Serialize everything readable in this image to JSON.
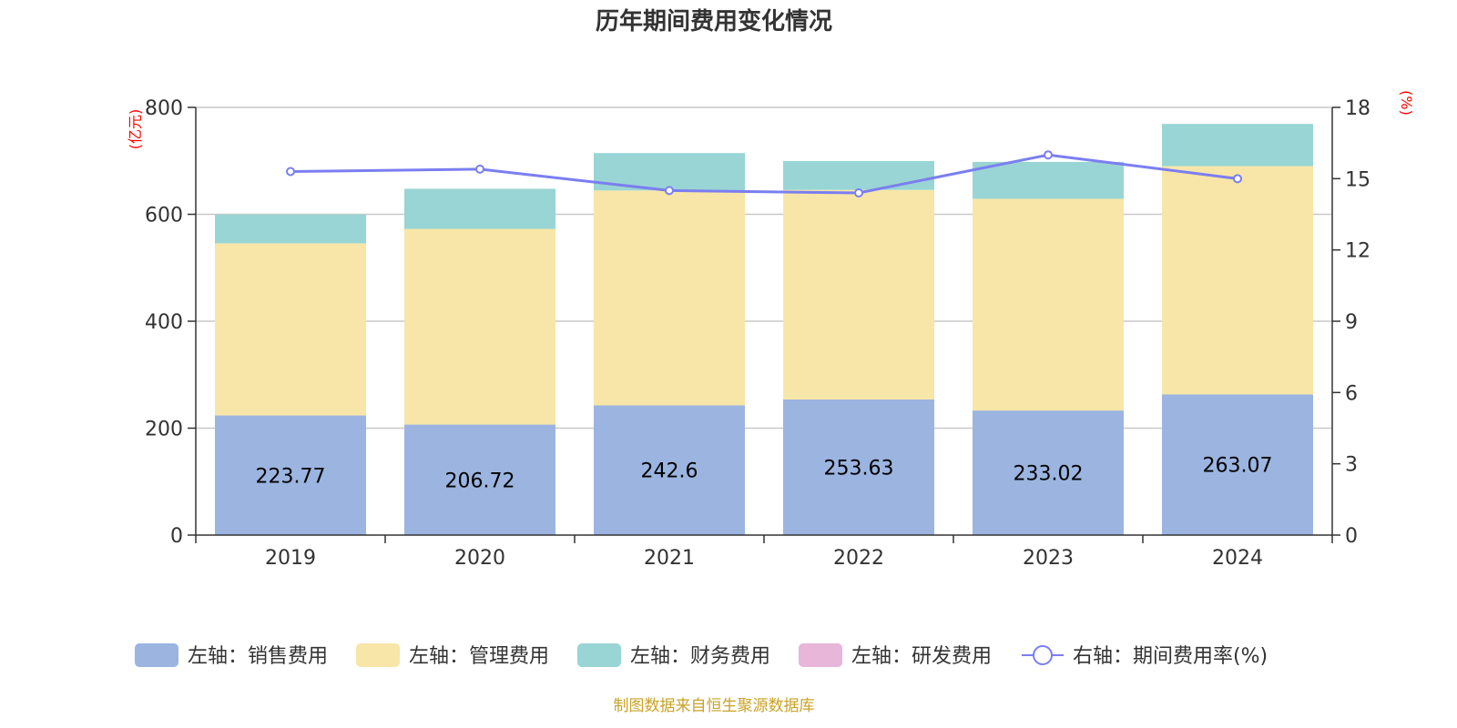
{
  "title": "历年期间费用变化情况",
  "source": "制图数据来自恒生聚源数据库",
  "chart_data": {
    "type": "bar",
    "stacked": true,
    "categories": [
      "2019",
      "2020",
      "2021",
      "2022",
      "2023",
      "2024"
    ],
    "series": [
      {
        "name": "左轴：销售费用",
        "axis": "left",
        "color": "#9bb5e0",
        "values": [
          223.77,
          206.72,
          242.6,
          253.63,
          233.02,
          263.07
        ],
        "labels_shown": true
      },
      {
        "name": "左轴：管理费用",
        "axis": "left",
        "color": "#f8e6a8",
        "values": [
          322,
          366,
          402,
          392,
          396,
          427
        ]
      },
      {
        "name": "左轴：财务费用",
        "axis": "left",
        "color": "#99d5d4",
        "values": [
          54,
          75,
          70,
          54,
          69,
          79
        ]
      },
      {
        "name": "左轴：研发费用",
        "axis": "left",
        "color": "#e7b6d8",
        "values": [
          0,
          0,
          0,
          0,
          0,
          0
        ]
      },
      {
        "name": "右轴：期间费用率(%)",
        "axis": "right",
        "type": "line",
        "color": "#7b7ef0",
        "values": [
          15.3,
          15.4,
          14.5,
          14.4,
          16.0,
          15.0
        ]
      }
    ],
    "left_axis": {
      "unit": "(亿元)",
      "min": 0,
      "max": 800,
      "ticks": [
        0,
        200,
        400,
        600,
        800
      ]
    },
    "right_axis": {
      "unit": "(%)",
      "min": 0,
      "max": 18,
      "ticks": [
        0,
        3,
        6,
        9,
        12,
        15,
        18
      ]
    },
    "grid": true,
    "legend_position": "bottom"
  }
}
